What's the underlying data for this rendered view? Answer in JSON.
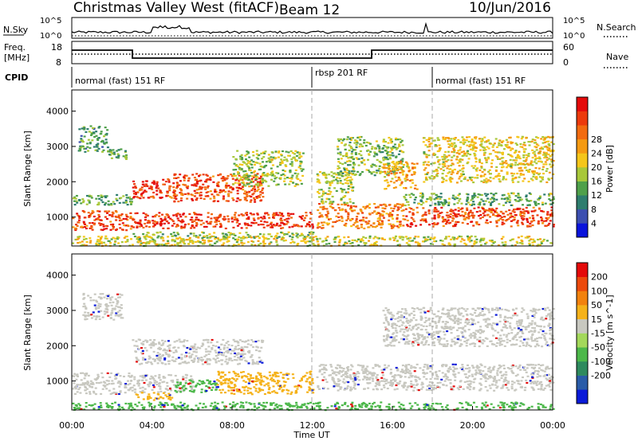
{
  "header": {
    "radar": "Christmas Valley West (fitACF)",
    "beam": "Beam 12",
    "date": "10/Jun/2016"
  },
  "noise_panel": {
    "left_label": "N.Sky",
    "right_label": "N.Search",
    "left_ticks": [
      "10^5",
      "10^0"
    ],
    "right_ticks": [
      "10^5",
      "10^0"
    ]
  },
  "freq_panel": {
    "left_label_1": "Freq.",
    "left_label_2": "[MHz]",
    "right_label": "Nave",
    "left_ticks": [
      "18",
      "8"
    ],
    "right_ticks": [
      "60",
      "0"
    ]
  },
  "cpid_panel": {
    "label": "CPID",
    "modes": [
      {
        "text": "normal (fast) 151 RF",
        "start_hour": 0
      },
      {
        "text": "rbsp 201 RF",
        "start_hour": 12
      },
      {
        "text": "normal (fast) 151 RF",
        "start_hour": 18
      }
    ]
  },
  "chart_data": {
    "type": "heatmap",
    "xlabel": "Time UT",
    "x_ticks": [
      "00:00",
      "04:00",
      "08:00",
      "12:00",
      "16:00",
      "20:00",
      "00:00"
    ],
    "xlim_hours": [
      0,
      24
    ],
    "ylim_km": [
      180,
      4600
    ],
    "power_panel": {
      "ylabel": "Slant Range [km]",
      "y_ticks": [
        1000,
        2000,
        3000,
        4000
      ],
      "colorbar_label": "Power [dB]",
      "colorbar_ticks": [
        4,
        8,
        12,
        16,
        20,
        24,
        28
      ],
      "colorbar_colors": [
        "#0a14dc",
        "#3c4fb0",
        "#2e7d6e",
        "#4fa04a",
        "#a8c83a",
        "#f5c61a",
        "#f59a12",
        "#f26b10",
        "#ec3a0c",
        "#e40a0a"
      ],
      "regions": [
        {
          "h0": 0.0,
          "h1": 3.0,
          "r0": 650,
          "r1": 1200,
          "level": 0.85
        },
        {
          "h0": 0.0,
          "h1": 3.0,
          "r0": 1350,
          "r1": 1650,
          "level": 0.35
        },
        {
          "h0": 0.3,
          "h1": 1.8,
          "r0": 2850,
          "r1": 3600,
          "level": 0.3
        },
        {
          "h0": 1.8,
          "h1": 2.7,
          "r0": 2650,
          "r1": 2950,
          "level": 0.35
        },
        {
          "h0": 3.0,
          "h1": 12.0,
          "r0": 700,
          "r1": 1150,
          "level": 0.9
        },
        {
          "h0": 3.0,
          "h1": 12.0,
          "r0": 420,
          "r1": 600,
          "level": 0.4
        },
        {
          "h0": 3.0,
          "h1": 4.8,
          "r0": 1550,
          "r1": 2100,
          "level": 0.9
        },
        {
          "h0": 4.8,
          "h1": 9.5,
          "r0": 1450,
          "r1": 2250,
          "level": 0.85
        },
        {
          "h0": 8.0,
          "h1": 11.5,
          "r0": 1900,
          "r1": 2900,
          "level": 0.45
        },
        {
          "h0": 12.2,
          "h1": 16.5,
          "r0": 700,
          "r1": 1400,
          "level": 0.75
        },
        {
          "h0": 12.2,
          "h1": 14.0,
          "r0": 1400,
          "r1": 2300,
          "level": 0.45
        },
        {
          "h0": 13.2,
          "h1": 16.5,
          "r0": 2200,
          "r1": 3300,
          "level": 0.4
        },
        {
          "h0": 15.5,
          "h1": 17.2,
          "r0": 1800,
          "r1": 2600,
          "level": 0.65
        },
        {
          "h0": 16.5,
          "h1": 24.0,
          "r0": 750,
          "r1": 1300,
          "level": 0.85
        },
        {
          "h0": 16.5,
          "h1": 24.0,
          "r0": 1350,
          "r1": 1700,
          "level": 0.35
        },
        {
          "h0": 17.5,
          "h1": 24.0,
          "r0": 2000,
          "r1": 3300,
          "level": 0.55
        },
        {
          "h0": 0.0,
          "h1": 24.0,
          "r0": 200,
          "r1": 480,
          "level": 0.5
        }
      ]
    },
    "velocity_panel": {
      "ylabel": "Slant Range [km]",
      "y_ticks": [
        1000,
        2000,
        3000,
        4000
      ],
      "colorbar_label": "Velocity [m s^-1]",
      "colorbar_ticks": [
        200,
        100,
        50,
        15,
        -15,
        -50,
        -100,
        -200
      ],
      "colorbar_colors": [
        "#0a1ad8",
        "#2a5ca8",
        "#2e8a5e",
        "#4cb84a",
        "#a3d85a",
        "#c8c8c0",
        "#f5b21a",
        "#f2820e",
        "#ec4a0c",
        "#e40a0a"
      ],
      "regions": [
        {
          "h0": 0.0,
          "h1": 3.0,
          "r0": 650,
          "r1": 1250,
          "vel": "gray"
        },
        {
          "h0": 0.5,
          "h1": 2.5,
          "r0": 2750,
          "r1": 3500,
          "vel": "gray"
        },
        {
          "h0": 3.0,
          "h1": 9.5,
          "r0": 1500,
          "r1": 2200,
          "vel": "gray"
        },
        {
          "h0": 3.0,
          "h1": 6.0,
          "r0": 700,
          "r1": 1200,
          "vel": "gray"
        },
        {
          "h0": 5.0,
          "h1": 7.2,
          "r0": 700,
          "r1": 1050,
          "vel": "green"
        },
        {
          "h0": 7.2,
          "h1": 12.0,
          "r0": 650,
          "r1": 1300,
          "vel": "orange"
        },
        {
          "h0": 3.0,
          "h1": 5.0,
          "r0": 480,
          "r1": 700,
          "vel": "orange"
        },
        {
          "h0": 12.2,
          "h1": 24.0,
          "r0": 750,
          "r1": 1500,
          "vel": "gray"
        },
        {
          "h0": 15.5,
          "h1": 24.0,
          "r0": 2000,
          "r1": 3100,
          "vel": "gray"
        },
        {
          "h0": 0.0,
          "h1": 24.0,
          "r0": 200,
          "r1": 420,
          "vel": "green"
        }
      ]
    }
  }
}
